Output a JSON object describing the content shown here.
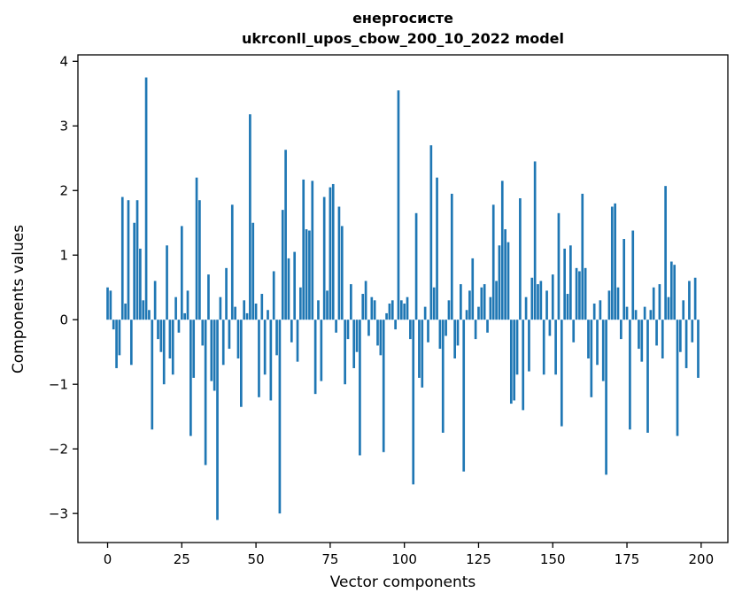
{
  "figure": {
    "title_line1": "енергосисте",
    "title_line2": "ukrconll_upos_cbow_200_10_2022 model",
    "xlabel": "Vector components",
    "ylabel": "Components values"
  },
  "chart_data": {
    "type": "bar",
    "title": "енергосисте\nukrconll_upos_cbow_200_10_2022 model",
    "xlabel": "Vector components",
    "ylabel": "Components values",
    "bar_color": "#1f77b4",
    "bar_width": 0.8,
    "xlim": [
      -10,
      209
    ],
    "ylim": [
      -3.45,
      4.1
    ],
    "xticks": [
      0,
      25,
      50,
      75,
      100,
      125,
      150,
      175,
      200
    ],
    "yticks": [
      -3,
      -2,
      -1,
      0,
      1,
      2,
      3,
      4
    ],
    "grid": false,
    "legend": null,
    "x_start": 0,
    "values": [
      0.5,
      0.45,
      -0.15,
      -0.75,
      -0.55,
      1.9,
      0.25,
      1.85,
      -0.7,
      1.5,
      1.85,
      1.1,
      0.3,
      3.75,
      0.15,
      -1.7,
      0.6,
      -0.3,
      -0.5,
      -1.0,
      1.15,
      -0.6,
      -0.85,
      0.35,
      -0.2,
      1.45,
      0.1,
      0.45,
      -1.8,
      -0.9,
      2.2,
      1.85,
      -0.4,
      -2.25,
      0.7,
      -0.95,
      -1.1,
      -3.1,
      0.35,
      -0.7,
      0.8,
      -0.45,
      1.78,
      0.2,
      -0.6,
      -1.35,
      0.3,
      0.1,
      3.18,
      1.5,
      0.25,
      -1.2,
      0.4,
      -0.85,
      0.15,
      -1.25,
      0.75,
      -0.55,
      -3.0,
      1.7,
      2.63,
      0.95,
      -0.35,
      1.05,
      -0.65,
      0.5,
      2.17,
      1.4,
      1.38,
      2.15,
      -1.15,
      0.3,
      -0.95,
      1.9,
      0.45,
      2.05,
      2.1,
      -0.2,
      1.75,
      1.45,
      -1.0,
      -0.3,
      0.55,
      -0.75,
      -0.5,
      -2.1,
      0.4,
      0.6,
      -0.25,
      0.35,
      0.3,
      -0.4,
      -0.55,
      -2.05,
      0.1,
      0.25,
      0.3,
      -0.15,
      3.55,
      0.3,
      0.25,
      0.35,
      -0.3,
      -2.55,
      1.65,
      -0.9,
      -1.05,
      0.2,
      -0.35,
      2.7,
      0.5,
      2.2,
      -0.45,
      -1.75,
      -0.25,
      0.3,
      1.95,
      -0.6,
      -0.4,
      0.55,
      -2.35,
      0.15,
      0.45,
      0.95,
      -0.3,
      0.2,
      0.5,
      0.55,
      -0.2,
      0.35,
      1.78,
      0.6,
      1.15,
      2.15,
      1.4,
      1.2,
      -1.3,
      -1.25,
      -0.85,
      1.88,
      -1.4,
      0.35,
      -0.8,
      0.65,
      2.45,
      0.55,
      0.6,
      -0.85,
      0.45,
      -0.25,
      0.7,
      -0.85,
      1.65,
      -1.65,
      1.1,
      0.4,
      1.15,
      -0.35,
      0.8,
      0.75,
      1.95,
      0.8,
      -0.6,
      -1.2,
      0.25,
      -0.7,
      0.3,
      -0.95,
      -2.4,
      0.45,
      1.75,
      1.8,
      0.5,
      -0.3,
      1.25,
      0.2,
      -1.7,
      1.38,
      0.15,
      -0.45,
      -0.65,
      0.2,
      -1.75,
      0.15,
      0.5,
      -0.4,
      0.55,
      -0.6,
      2.07,
      0.35,
      0.9,
      0.85,
      -1.8,
      -0.5,
      0.3,
      -0.75,
      0.6,
      -0.35,
      0.65,
      -0.9
    ]
  }
}
